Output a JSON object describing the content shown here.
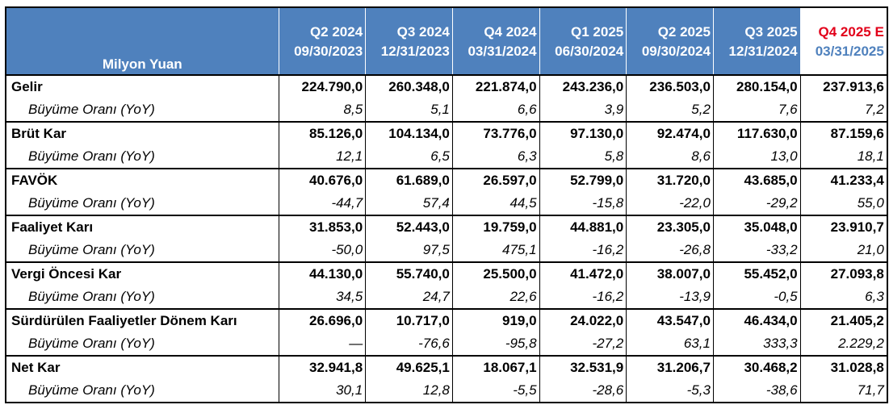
{
  "table": {
    "header_label": "Milyon Yuan",
    "quarters": [
      "Q2 2024",
      "Q3 2024",
      "Q4 2024",
      "Q1 2025",
      "Q2 2025",
      "Q3 2025",
      "Q4 2025 E"
    ],
    "dates": [
      "09/30/2023",
      "12/31/2023",
      "03/31/2024",
      "06/30/2024",
      "09/30/2024",
      "12/31/2024",
      "03/31/2025"
    ],
    "colors": {
      "header_bg": "#4f81bd",
      "header_text": "#ffffff",
      "estimate_label": "#e2001a"
    },
    "rows": [
      {
        "label": "Gelir",
        "values": [
          "224.790,0",
          "260.348,0",
          "221.874,0",
          "243.236,0",
          "236.503,0",
          "280.154,0",
          "237.913,6"
        ],
        "growth_label": "Büyüme Oranı (YoY)",
        "growth": [
          "8,5",
          "5,1",
          "6,6",
          "3,9",
          "5,2",
          "7,6",
          "7,2"
        ]
      },
      {
        "label": "Brüt Kar",
        "values": [
          "85.126,0",
          "104.134,0",
          "73.776,0",
          "97.130,0",
          "92.474,0",
          "117.630,0",
          "87.159,6"
        ],
        "growth_label": "Büyüme Oranı (YoY)",
        "growth": [
          "12,1",
          "6,5",
          "6,3",
          "5,8",
          "8,6",
          "13,0",
          "18,1"
        ]
      },
      {
        "label": "FAVÖK",
        "values": [
          "40.676,0",
          "61.689,0",
          "26.597,0",
          "52.799,0",
          "31.720,0",
          "43.685,0",
          "41.233,4"
        ],
        "growth_label": "Büyüme Oranı (YoY)",
        "growth": [
          "-44,7",
          "57,4",
          "44,5",
          "-15,8",
          "-22,0",
          "-29,2",
          "55,0"
        ]
      },
      {
        "label": "Faaliyet Karı",
        "values": [
          "31.853,0",
          "52.443,0",
          "19.759,0",
          "44.881,0",
          "23.305,0",
          "35.048,0",
          "23.910,7"
        ],
        "growth_label": "Büyüme Oranı (YoY)",
        "growth": [
          "-50,0",
          "97,5",
          "475,1",
          "-16,2",
          "-26,8",
          "-33,2",
          "21,0"
        ]
      },
      {
        "label": "Vergi Öncesi Kar",
        "values": [
          "44.130,0",
          "55.740,0",
          "25.500,0",
          "41.472,0",
          "38.007,0",
          "55.452,0",
          "27.093,8"
        ],
        "growth_label": "Büyüme Oranı (YoY)",
        "growth": [
          "34,5",
          "24,7",
          "22,6",
          "-16,2",
          "-13,9",
          "-0,5",
          "6,3"
        ]
      },
      {
        "label": "Sürdürülen Faaliyetler Dönem Karı",
        "values": [
          "26.696,0",
          "10.717,0",
          "919,0",
          "24.022,0",
          "43.547,0",
          "46.434,0",
          "21.405,2"
        ],
        "growth_label": "Büyüme Oranı (YoY)",
        "growth": [
          "—",
          "-76,6",
          "-95,8",
          "-27,2",
          "63,1",
          "333,3",
          "2.229,2"
        ]
      },
      {
        "label": "Net Kar",
        "values": [
          "32.941,8",
          "49.625,1",
          "18.067,1",
          "32.531,9",
          "31.206,7",
          "30.468,2",
          "31.028,8"
        ],
        "growth_label": "Büyüme Oranı (YoY)",
        "growth": [
          "30,1",
          "12,8",
          "-5,5",
          "-28,6",
          "-5,3",
          "-38,6",
          "71,7"
        ]
      }
    ]
  }
}
